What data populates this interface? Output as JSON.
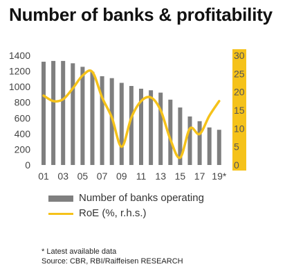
{
  "title": "Number of banks & profitability",
  "legend": {
    "bars_label": "Number of banks operating",
    "line_label": "RoE (%, r.h.s.)"
  },
  "footnote": "* Latest available data",
  "source": "Source: CBR, RBI/Raiffeisen RESEARCH",
  "colors": {
    "bars": "#7f7f7f",
    "line": "#f5c21a",
    "right_axis_bg": "#f5c21a"
  },
  "chart_data": {
    "type": "bar",
    "categories": [
      "01",
      "02",
      "03",
      "04",
      "05",
      "06",
      "07",
      "08",
      "09",
      "10",
      "11",
      "12",
      "13",
      "14",
      "15",
      "16",
      "17",
      "18",
      "19*"
    ],
    "x_tick_labels": [
      "01",
      "03",
      "05",
      "07",
      "09",
      "11",
      "13",
      "15",
      "17",
      "19*"
    ],
    "series": [
      {
        "name": "Number of banks operating",
        "type": "bar",
        "axis": "left",
        "values": [
          1320,
          1330,
          1330,
          1300,
          1255,
          1190,
          1135,
          1110,
          1050,
          1010,
          975,
          955,
          925,
          835,
          735,
          620,
          560,
          480,
          450
        ]
      },
      {
        "name": "RoE (%, r.h.s.)",
        "type": "line",
        "axis": "right",
        "values": [
          19,
          17.5,
          18,
          21,
          24.5,
          25.5,
          18.5,
          13,
          5,
          13,
          17.5,
          18.5,
          15,
          7,
          2,
          10,
          8.5,
          13.5,
          17.5
        ]
      }
    ],
    "ylim": [
      0,
      1400
    ],
    "y_ticks": [
      0,
      200,
      400,
      600,
      800,
      1000,
      1200,
      1400
    ],
    "y2lim": [
      0,
      30
    ],
    "y2_ticks": [
      0,
      5,
      10,
      15,
      20,
      25,
      30
    ],
    "grid": false,
    "legend_position": "bottom"
  }
}
